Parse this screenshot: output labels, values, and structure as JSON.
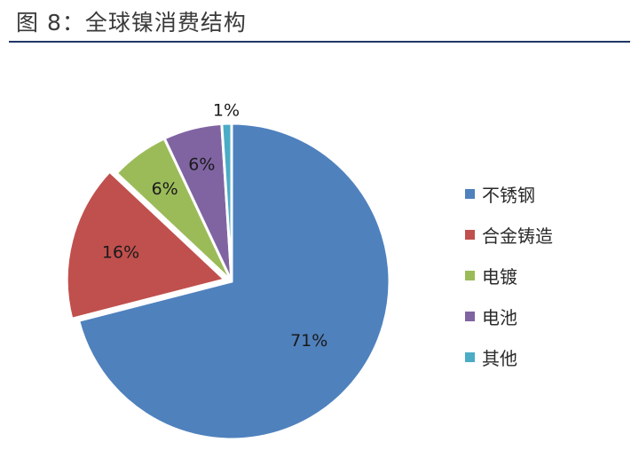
{
  "figure": {
    "title": "图 8：全球镍消费结构"
  },
  "chart_data": {
    "type": "pie",
    "title": "",
    "series": [
      {
        "name": "不锈钢",
        "value": 71,
        "label": "71%",
        "color": "#4F81BD"
      },
      {
        "name": "合金铸造",
        "value": 16,
        "label": "16%",
        "color": "#C0504D"
      },
      {
        "name": "电镀",
        "value": 6,
        "label": "6%",
        "color": "#9BBB59"
      },
      {
        "name": "电池",
        "value": 6,
        "label": "6%",
        "color": "#8064A2"
      },
      {
        "name": "其他",
        "value": 1,
        "label": "1%",
        "color": "#4BACC6"
      }
    ],
    "start_angle_deg": 0,
    "direction": "clockwise",
    "exploded_slice": "合金铸造",
    "legend_position": "right"
  }
}
